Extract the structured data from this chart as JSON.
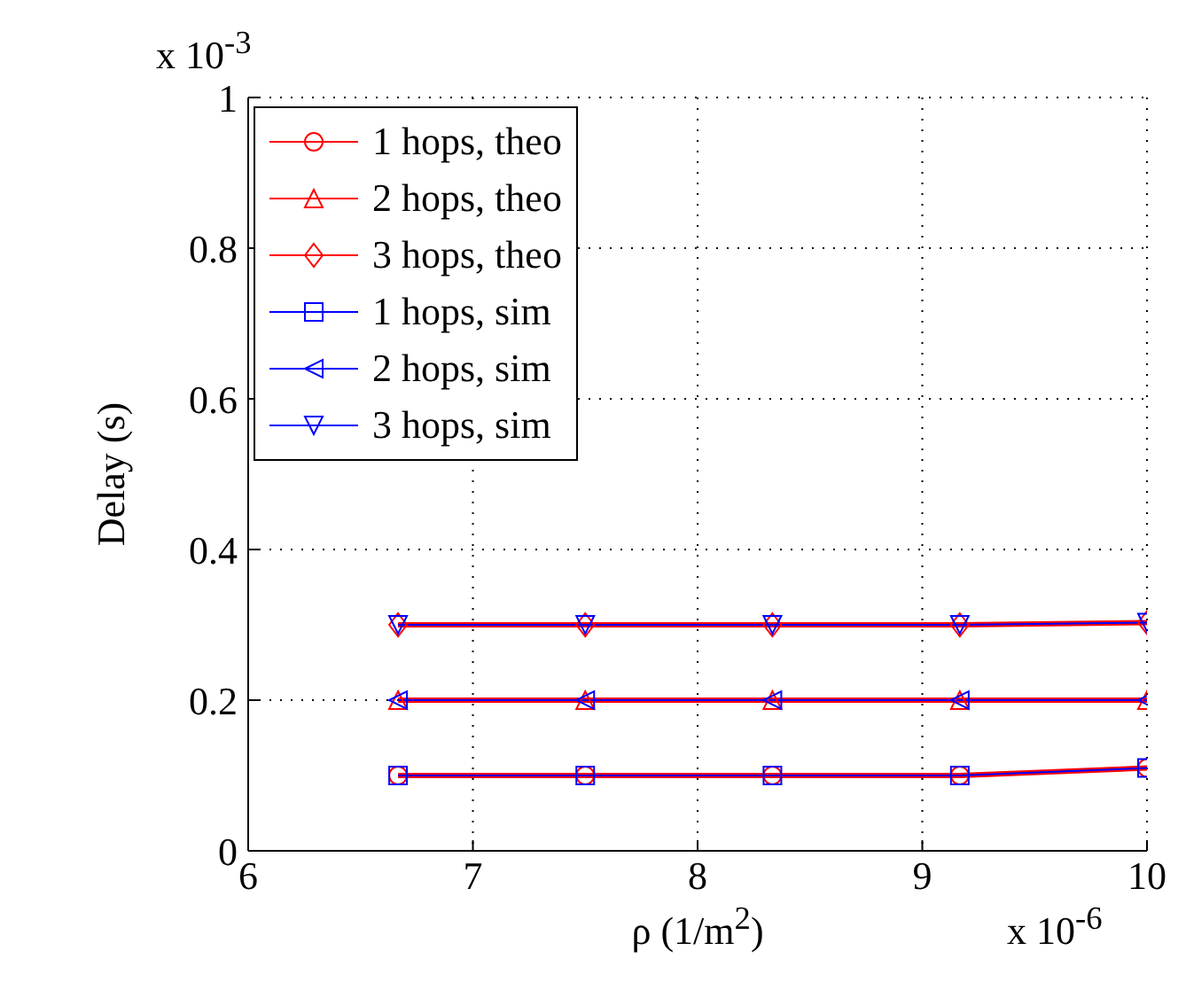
{
  "chart_data": {
    "type": "line",
    "xlabel": "ρ (1/m$^{2}$)",
    "ylabel": "Delay (s)",
    "annotations": [
      "x 10$^{-3}$",
      "x 10$^{-6}$"
    ],
    "x": [
      6.667,
      7.5,
      8.333,
      9.167,
      10
    ],
    "series": [
      {
        "name": "1 hops, theo",
        "color": "#ff0000",
        "marker": "circle",
        "values": [
          0.1,
          0.1,
          0.1,
          0.1,
          0.11
        ]
      },
      {
        "name": "2 hops, theo",
        "color": "#ff0000",
        "marker": "triangle",
        "values": [
          0.2,
          0.2,
          0.2,
          0.2,
          0.2
        ]
      },
      {
        "name": "3 hops, theo",
        "color": "#ff0000",
        "marker": "diamond",
        "values": [
          0.3,
          0.3,
          0.3,
          0.3,
          0.303
        ]
      },
      {
        "name": "1 hops, sim",
        "color": "#0000ff",
        "marker": "square",
        "values": [
          0.1,
          0.1,
          0.1,
          0.1,
          0.11
        ]
      },
      {
        "name": "2 hops, sim",
        "color": "#0000ff",
        "marker": "triangle-left",
        "values": [
          0.2,
          0.2,
          0.2,
          0.2,
          0.2
        ]
      },
      {
        "name": "3 hops, sim",
        "color": "#0000ff",
        "marker": "triangle-down",
        "values": [
          0.3,
          0.3,
          0.3,
          0.3,
          0.303
        ]
      }
    ],
    "xlim": [
      6,
      10
    ],
    "xticks": [
      6,
      7,
      8,
      9,
      10
    ],
    "ylim": [
      0,
      1
    ],
    "yticks": [
      0,
      0.2,
      0.4,
      0.6,
      0.8,
      1
    ],
    "grid": true,
    "legend": "top left"
  }
}
